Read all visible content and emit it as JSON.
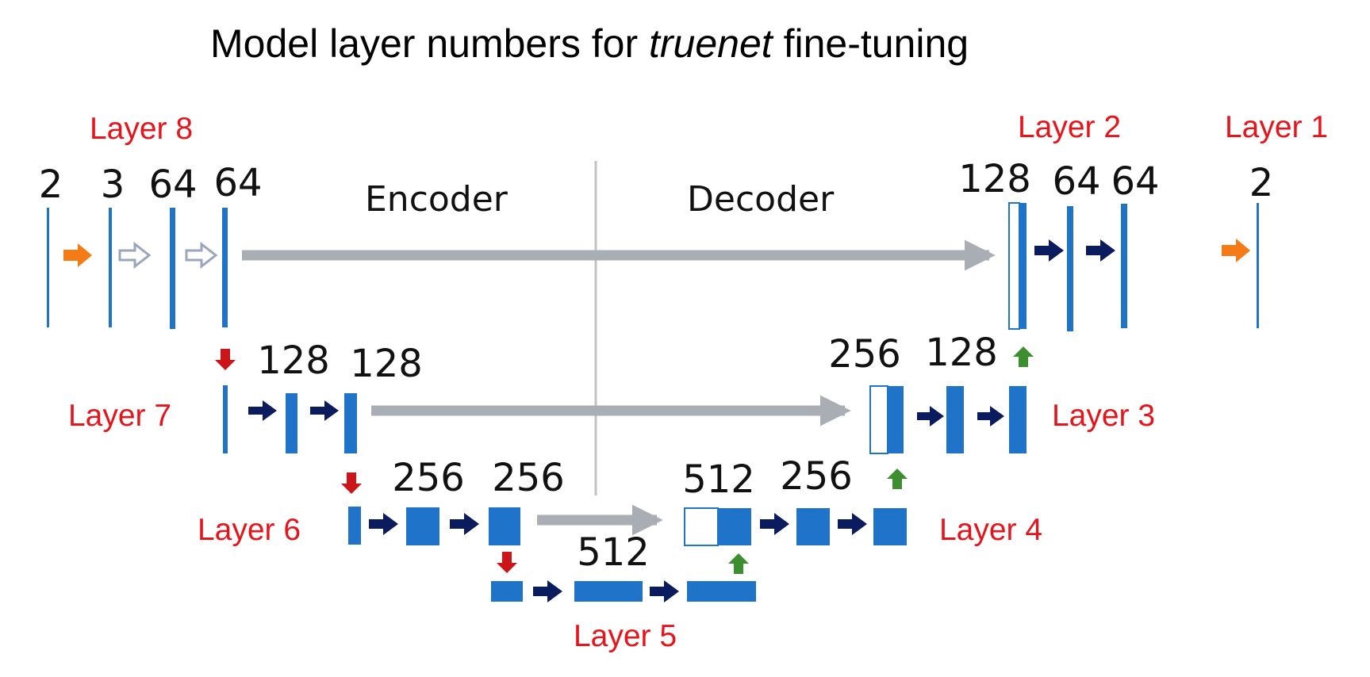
{
  "title": {
    "prefix": "Model layer numbers for ",
    "emphasis": "truenet",
    "suffix": " fine-tuning"
  },
  "sections": {
    "encoder": "Encoder",
    "decoder": "Decoder"
  },
  "layer_labels": [
    "Layer 1",
    "Layer 2",
    "Layer 3",
    "Layer 4",
    "Layer 5",
    "Layer 6",
    "Layer 7",
    "Layer 8"
  ],
  "channel_counts": {
    "row1": [
      "2",
      "3",
      "64",
      "64",
      "128",
      "64",
      "64",
      "2"
    ],
    "row2": [
      "128",
      "128",
      "256",
      "128"
    ],
    "row3": [
      "256",
      "256",
      "512",
      "256"
    ],
    "row4": [
      "512"
    ]
  },
  "colors": {
    "feature_map": "#1f74c9",
    "label": "#e8141b",
    "skip_connection": "#a9aeb4",
    "conv_arrow": "#0b1c5e",
    "io_arrow": "#f47b15",
    "pool_arrow": "#cc1518",
    "upconv_arrow": "#3c8e2f",
    "input_arrow_outline": "#9aa6bd"
  },
  "icons": [
    "conv-arrow-icon",
    "io-arrow-icon",
    "input-conv-arrow-icon",
    "pool-arrow-icon",
    "upconv-arrow-icon",
    "skip-connection-arrow-icon"
  ]
}
